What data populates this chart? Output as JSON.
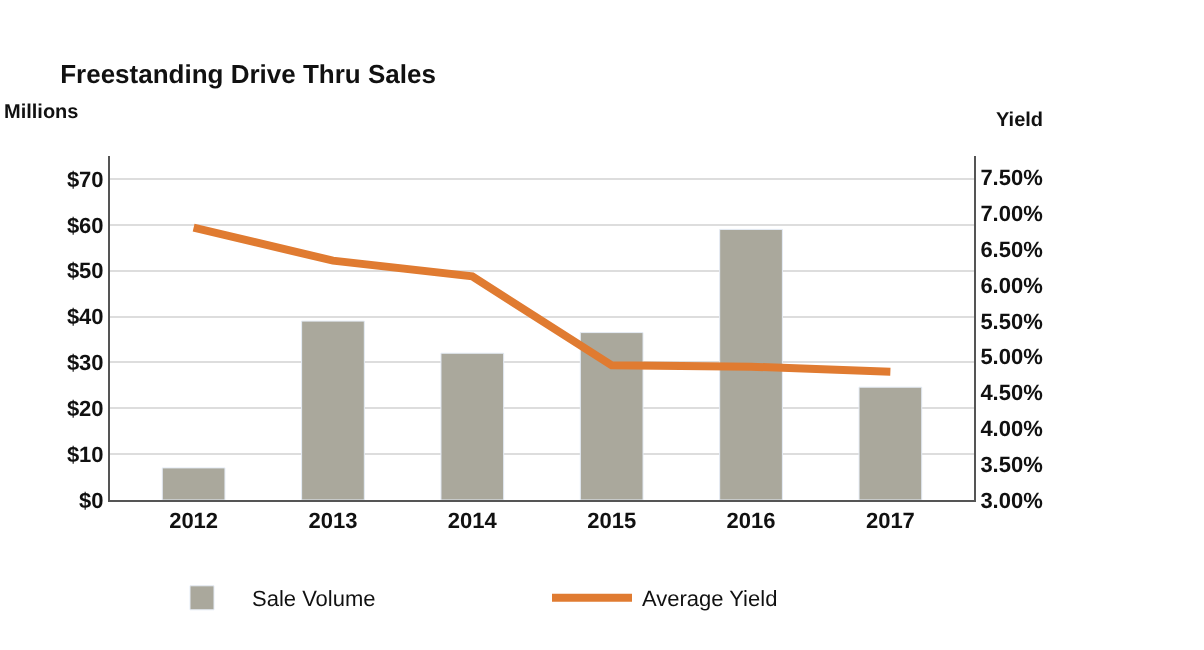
{
  "chart_data": {
    "type": "bar",
    "title": "Freestanding Drive Thru Sales",
    "ylabel": "Millions",
    "y2label": "Yield",
    "categories": [
      "2012",
      "2013",
      "2014",
      "2015",
      "2016",
      "2017"
    ],
    "series": [
      {
        "name": "Sale Volume",
        "color": "#aaa89c",
        "values": [
          7,
          39,
          32,
          36.5,
          59,
          24.6
        ]
      },
      {
        "name": "Average Yield",
        "color": "#e07b31",
        "type": "line",
        "axis": "y2",
        "values": [
          6.8,
          6.34,
          6.12,
          4.88,
          4.86,
          4.79
        ]
      }
    ],
    "ylim": [
      0,
      75
    ],
    "yticks": [
      {
        "value": 0,
        "label": "$0"
      },
      {
        "value": 10,
        "label": "$10"
      },
      {
        "value": 20,
        "label": "$20"
      },
      {
        "value": 30,
        "label": "$30"
      },
      {
        "value": 40,
        "label": "$40"
      },
      {
        "value": 50,
        "label": "$50"
      },
      {
        "value": 60,
        "label": "$60"
      },
      {
        "value": 70,
        "label": "$70"
      }
    ],
    "y2lim": [
      3,
      7.8
    ],
    "y2ticks": [
      {
        "value": 3,
        "label": "3.00%"
      },
      {
        "value": 3.5,
        "label": "3.50%"
      },
      {
        "value": 4,
        "label": "4.00%"
      },
      {
        "value": 4.5,
        "label": "4.50%"
      },
      {
        "value": 5,
        "label": "5.00%"
      },
      {
        "value": 5.5,
        "label": "5.50%"
      },
      {
        "value": 6,
        "label": "6.00%"
      },
      {
        "value": 6.5,
        "label": "6.50%"
      },
      {
        "value": 7,
        "label": "7.00%"
      },
      {
        "value": 7.5,
        "label": "7.50%"
      }
    ],
    "grid": "y",
    "legend": "bottom",
    "marker": "none",
    "line_style": "solid"
  }
}
